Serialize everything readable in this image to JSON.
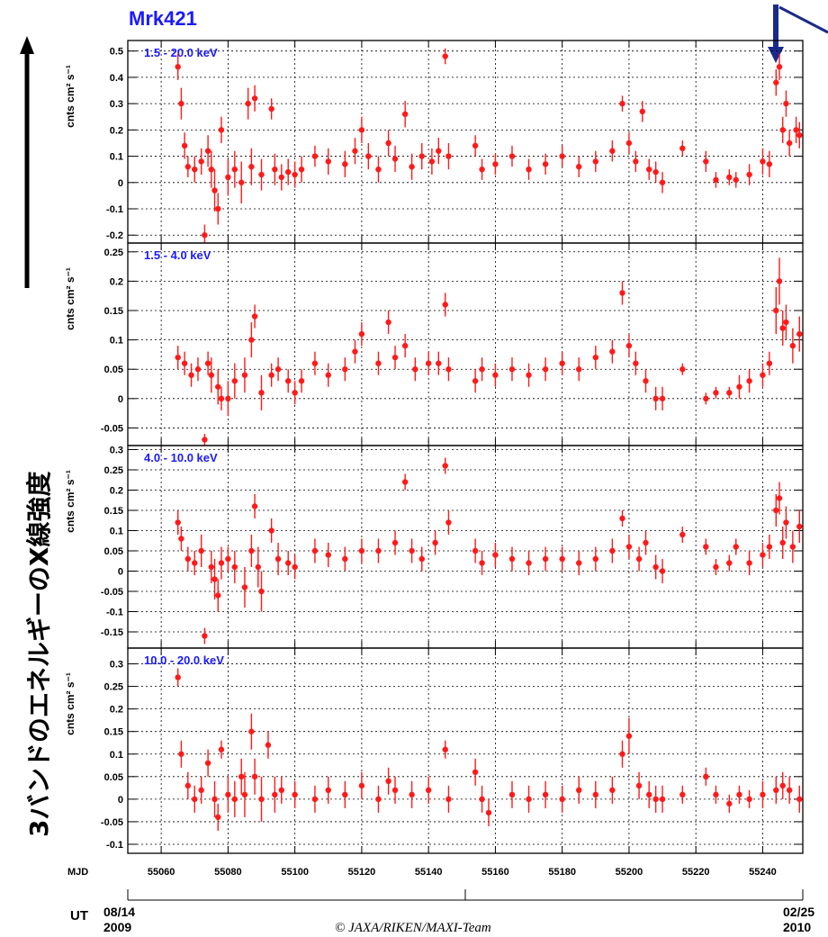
{
  "title": "Mrk421",
  "side_label": "3バンドのエネルギーのX線強度",
  "ylabel": "cnts cm² s⁻¹",
  "mjd_label": "MJD",
  "ut_label": "UT",
  "ut_start_date": "08/14",
  "ut_start_year": "2009",
  "ut_end_date": "02/25",
  "ut_end_year": "2010",
  "copyright": "© JAXA/RIKEN/MAXI-Team",
  "colors": {
    "title": "#1a1aff",
    "band": "#1a1aff",
    "points": "#ff1a1a",
    "arrow": "#1a2a8a"
  },
  "chart_data": [
    {
      "type": "scatter",
      "band_label": "1.5 - 20.0 keV",
      "xlim": [
        55050,
        55252
      ],
      "ylim": [
        -0.23,
        0.54
      ],
      "yticks": [
        -0.2,
        -0.1,
        0,
        0.1,
        0.2,
        0.3,
        0.4,
        0.5
      ],
      "grid": true,
      "x": [
        55065,
        55066,
        55067,
        55068,
        55070,
        55072,
        55073,
        55074,
        55075,
        55076,
        55077,
        55078,
        55080,
        55082,
        55084,
        55086,
        55087,
        55088,
        55090,
        55093,
        55094,
        55096,
        55098,
        55100,
        55102,
        55106,
        55110,
        55115,
        55118,
        55120,
        55122,
        55125,
        55128,
        55130,
        55133,
        55135,
        55138,
        55141,
        55143,
        55145,
        55146,
        55154,
        55156,
        55160,
        55165,
        55170,
        55175,
        55180,
        55185,
        55190,
        55195,
        55198,
        55200,
        55202,
        55204,
        55206,
        55208,
        55210,
        55216,
        55223,
        55226,
        55230,
        55232,
        55236,
        55240,
        55242,
        55244,
        55245,
        55246,
        55247,
        55248,
        55250,
        55251
      ],
      "y": [
        0.44,
        0.3,
        0.14,
        0.06,
        0.05,
        0.08,
        -0.2,
        0.12,
        0.05,
        -0.03,
        -0.1,
        0.2,
        0.02,
        0.05,
        0.0,
        0.3,
        0.06,
        0.32,
        0.03,
        0.28,
        0.05,
        0.02,
        0.04,
        0.03,
        0.05,
        0.1,
        0.08,
        0.07,
        0.12,
        0.2,
        0.1,
        0.05,
        0.15,
        0.09,
        0.26,
        0.06,
        0.1,
        0.08,
        0.12,
        0.48,
        0.1,
        0.14,
        0.05,
        0.07,
        0.1,
        0.05,
        0.07,
        0.1,
        0.06,
        0.08,
        0.12,
        0.3,
        0.15,
        0.08,
        0.27,
        0.05,
        0.04,
        0.0,
        0.13,
        0.08,
        0.01,
        0.02,
        0.01,
        0.03,
        0.08,
        0.07,
        0.38,
        0.44,
        0.2,
        0.3,
        0.15,
        0.2,
        0.18
      ],
      "err": [
        0.05,
        0.06,
        0.05,
        0.04,
        0.05,
        0.05,
        0.04,
        0.06,
        0.07,
        0.08,
        0.06,
        0.05,
        0.07,
        0.07,
        0.08,
        0.06,
        0.07,
        0.05,
        0.06,
        0.04,
        0.06,
        0.05,
        0.05,
        0.05,
        0.05,
        0.04,
        0.05,
        0.05,
        0.05,
        0.05,
        0.05,
        0.05,
        0.05,
        0.05,
        0.05,
        0.05,
        0.05,
        0.05,
        0.05,
        0.03,
        0.05,
        0.04,
        0.04,
        0.04,
        0.04,
        0.04,
        0.04,
        0.04,
        0.04,
        0.04,
        0.04,
        0.03,
        0.04,
        0.04,
        0.04,
        0.04,
        0.04,
        0.04,
        0.03,
        0.04,
        0.03,
        0.03,
        0.03,
        0.04,
        0.05,
        0.05,
        0.05,
        0.05,
        0.05,
        0.05,
        0.05,
        0.05,
        0.05
      ]
    },
    {
      "type": "scatter",
      "band_label": "1.5 - 4.0 keV",
      "xlim": [
        55050,
        55252
      ],
      "ylim": [
        -0.08,
        0.265
      ],
      "yticks": [
        -0.05,
        0,
        0.05,
        0.1,
        0.15,
        0.2,
        0.25
      ],
      "grid": true,
      "x": [
        55065,
        55067,
        55069,
        55071,
        55073,
        55074,
        55075,
        55077,
        55078,
        55080,
        55082,
        55085,
        55087,
        55088,
        55090,
        55093,
        55095,
        55098,
        55100,
        55102,
        55106,
        55110,
        55115,
        55118,
        55120,
        55125,
        55128,
        55130,
        55133,
        55136,
        55140,
        55143,
        55145,
        55146,
        55154,
        55156,
        55160,
        55165,
        55170,
        55175,
        55180,
        55185,
        55190,
        55195,
        55198,
        55200,
        55202,
        55205,
        55208,
        55210,
        55216,
        55223,
        55226,
        55230,
        55233,
        55236,
        55240,
        55242,
        55244,
        55245,
        55246,
        55247,
        55249,
        55251
      ],
      "y": [
        0.07,
        0.06,
        0.04,
        0.05,
        -0.07,
        0.06,
        0.04,
        0.02,
        0.0,
        0.0,
        0.03,
        0.04,
        0.1,
        0.14,
        0.01,
        0.04,
        0.05,
        0.03,
        0.01,
        0.03,
        0.06,
        0.04,
        0.05,
        0.08,
        0.11,
        0.06,
        0.13,
        0.07,
        0.09,
        0.05,
        0.06,
        0.06,
        0.16,
        0.05,
        0.03,
        0.05,
        0.04,
        0.05,
        0.04,
        0.05,
        0.06,
        0.05,
        0.07,
        0.08,
        0.18,
        0.09,
        0.06,
        0.03,
        0.0,
        0.0,
        0.05,
        0.0,
        0.01,
        0.01,
        0.02,
        0.03,
        0.04,
        0.06,
        0.15,
        0.2,
        0.12,
        0.13,
        0.09,
        0.11
      ],
      "err": [
        0.02,
        0.02,
        0.02,
        0.02,
        0.01,
        0.02,
        0.03,
        0.03,
        0.02,
        0.03,
        0.03,
        0.03,
        0.03,
        0.02,
        0.03,
        0.02,
        0.02,
        0.02,
        0.02,
        0.02,
        0.02,
        0.02,
        0.02,
        0.02,
        0.02,
        0.02,
        0.02,
        0.02,
        0.02,
        0.02,
        0.02,
        0.02,
        0.02,
        0.02,
        0.02,
        0.02,
        0.02,
        0.02,
        0.02,
        0.02,
        0.02,
        0.02,
        0.02,
        0.02,
        0.02,
        0.02,
        0.02,
        0.02,
        0.02,
        0.02,
        0.01,
        0.01,
        0.01,
        0.01,
        0.02,
        0.02,
        0.02,
        0.02,
        0.04,
        0.04,
        0.03,
        0.03,
        0.03,
        0.03
      ]
    },
    {
      "type": "scatter",
      "band_label": "4.0 - 10.0 keV",
      "xlim": [
        55050,
        55252
      ],
      "ylim": [
        -0.19,
        0.31
      ],
      "yticks": [
        -0.15,
        -0.1,
        -0.05,
        0,
        0.05,
        0.1,
        0.15,
        0.2,
        0.25,
        0.3
      ],
      "grid": true,
      "x": [
        55065,
        55066,
        55068,
        55070,
        55072,
        55073,
        55075,
        55076,
        55077,
        55078,
        55080,
        55082,
        55085,
        55087,
        55088,
        55089,
        55090,
        55093,
        55095,
        55098,
        55100,
        55106,
        55110,
        55115,
        55120,
        55125,
        55130,
        55133,
        55135,
        55138,
        55142,
        55145,
        55146,
        55154,
        55156,
        55160,
        55165,
        55170,
        55175,
        55180,
        55185,
        55190,
        55195,
        55198,
        55200,
        55203,
        55205,
        55208,
        55210,
        55216,
        55223,
        55226,
        55230,
        55232,
        55236,
        55240,
        55242,
        55244,
        55245,
        55246,
        55247,
        55249,
        55251
      ],
      "y": [
        0.12,
        0.08,
        0.03,
        0.02,
        0.05,
        -0.16,
        0.01,
        -0.02,
        -0.06,
        0.02,
        0.03,
        0.01,
        -0.04,
        0.05,
        0.16,
        0.01,
        -0.05,
        0.1,
        0.03,
        0.02,
        0.01,
        0.05,
        0.04,
        0.03,
        0.05,
        0.05,
        0.07,
        0.22,
        0.05,
        0.03,
        0.07,
        0.26,
        0.12,
        0.05,
        0.02,
        0.04,
        0.03,
        0.02,
        0.03,
        0.03,
        0.02,
        0.03,
        0.05,
        0.13,
        0.06,
        0.03,
        0.07,
        0.01,
        0.0,
        0.09,
        0.06,
        0.01,
        0.02,
        0.06,
        0.02,
        0.04,
        0.06,
        0.15,
        0.18,
        0.07,
        0.12,
        0.06,
        0.11
      ],
      "err": [
        0.03,
        0.03,
        0.03,
        0.03,
        0.04,
        0.02,
        0.04,
        0.05,
        0.04,
        0.04,
        0.03,
        0.04,
        0.05,
        0.04,
        0.03,
        0.05,
        0.05,
        0.03,
        0.04,
        0.03,
        0.03,
        0.03,
        0.03,
        0.03,
        0.03,
        0.03,
        0.03,
        0.02,
        0.03,
        0.03,
        0.03,
        0.02,
        0.03,
        0.03,
        0.03,
        0.03,
        0.03,
        0.03,
        0.03,
        0.03,
        0.03,
        0.03,
        0.03,
        0.02,
        0.03,
        0.03,
        0.03,
        0.03,
        0.03,
        0.02,
        0.02,
        0.02,
        0.02,
        0.02,
        0.03,
        0.03,
        0.03,
        0.04,
        0.04,
        0.04,
        0.04,
        0.04,
        0.04
      ]
    },
    {
      "type": "scatter",
      "band_label": "10.0 - 20.0 keV",
      "xlim": [
        55050,
        55252
      ],
      "ylim": [
        -0.12,
        0.335
      ],
      "yticks": [
        -0.1,
        -0.05,
        0,
        0.05,
        0.1,
        0.15,
        0.2,
        0.25,
        0.3
      ],
      "grid": true,
      "x": [
        55065,
        55066,
        55068,
        55070,
        55072,
        55074,
        55076,
        55077,
        55078,
        55080,
        55082,
        55084,
        55085,
        55087,
        55088,
        55090,
        55092,
        55094,
        55096,
        55100,
        55106,
        55110,
        55115,
        55120,
        55125,
        55128,
        55130,
        55135,
        55140,
        55145,
        55146,
        55154,
        55156,
        55158,
        55165,
        55170,
        55175,
        55180,
        55185,
        55190,
        55195,
        55198,
        55200,
        55203,
        55206,
        55208,
        55210,
        55216,
        55223,
        55226,
        55230,
        55233,
        55236,
        55240,
        55244,
        55246,
        55248,
        55251
      ],
      "y": [
        0.27,
        0.1,
        0.03,
        0.0,
        0.02,
        0.08,
        0.0,
        -0.04,
        0.11,
        0.01,
        0.0,
        0.05,
        0.01,
        0.15,
        0.05,
        0.0,
        0.12,
        0.01,
        0.02,
        0.01,
        0.0,
        0.02,
        0.01,
        0.03,
        0.0,
        0.04,
        0.02,
        0.01,
        0.02,
        0.11,
        0.0,
        0.06,
        0.0,
        -0.03,
        0.01,
        0.0,
        0.01,
        0.0,
        0.02,
        0.01,
        0.02,
        0.1,
        0.14,
        0.03,
        0.01,
        0.0,
        0.0,
        0.01,
        0.05,
        0.01,
        -0.01,
        0.01,
        0.0,
        0.01,
        0.02,
        0.03,
        0.02,
        0.0
      ],
      "err": [
        0.02,
        0.03,
        0.03,
        0.03,
        0.03,
        0.03,
        0.04,
        0.03,
        0.02,
        0.04,
        0.04,
        0.04,
        0.05,
        0.04,
        0.04,
        0.05,
        0.03,
        0.04,
        0.03,
        0.03,
        0.03,
        0.03,
        0.03,
        0.03,
        0.03,
        0.03,
        0.03,
        0.03,
        0.03,
        0.02,
        0.03,
        0.03,
        0.03,
        0.03,
        0.03,
        0.03,
        0.03,
        0.03,
        0.03,
        0.03,
        0.03,
        0.03,
        0.04,
        0.03,
        0.03,
        0.03,
        0.03,
        0.02,
        0.02,
        0.02,
        0.02,
        0.02,
        0.02,
        0.03,
        0.03,
        0.03,
        0.03,
        0.03
      ]
    }
  ],
  "x_axis": {
    "ticks": [
      55060,
      55080,
      55100,
      55120,
      55140,
      55160,
      55180,
      55200,
      55220,
      55240
    ]
  }
}
